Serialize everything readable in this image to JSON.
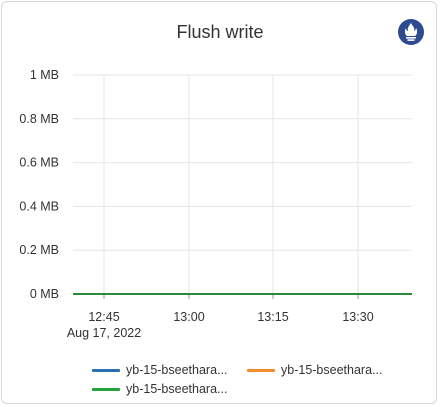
{
  "title": "Flush write",
  "icon": "prometheus-icon",
  "colors": {
    "series1": "#2b6fb0",
    "series2": "#f28c2c",
    "series3": "#24a33a",
    "icon": "#2e4b8f"
  },
  "chart_data": {
    "type": "line",
    "title": "Flush write",
    "xlabel": "",
    "ylabel": "",
    "y_ticks": [
      "1 MB",
      "0.8 MB",
      "0.6 MB",
      "0.4 MB",
      "0.2 MB",
      "0 MB"
    ],
    "ylim": [
      0,
      1
    ],
    "x_ticks": [
      "12:45",
      "13:00",
      "13:15",
      "13:30"
    ],
    "x_subtick": "Aug 17, 2022",
    "x": [
      "12:38",
      "13:38"
    ],
    "grid": true,
    "legend_position": "bottom",
    "series": [
      {
        "name": "yb-15-bseethara...",
        "values": [
          0,
          0
        ]
      },
      {
        "name": "yb-15-bseethara...",
        "values": [
          0,
          0
        ]
      },
      {
        "name": "yb-15-bseethara...",
        "values": [
          0,
          0
        ]
      }
    ]
  }
}
